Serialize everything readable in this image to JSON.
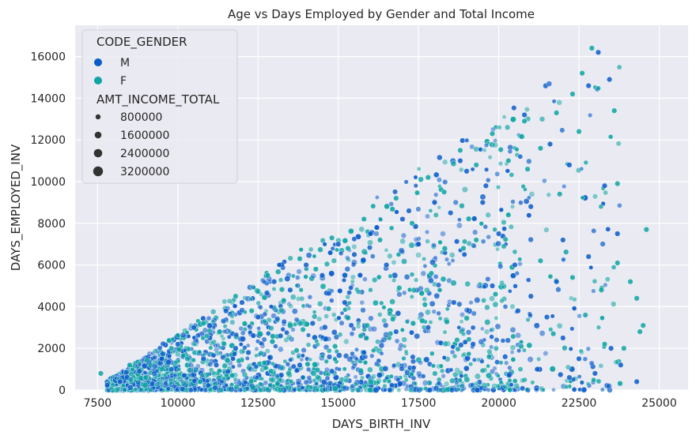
{
  "chart_data": {
    "type": "scatter",
    "title": "Age vs Days Employed by Gender and Total Income",
    "xlabel": "DAYS_BIRTH_INV",
    "ylabel": "DAYS_EMPLOYED_INV",
    "xlim": [
      6800,
      25900
    ],
    "ylim": [
      0,
      17500
    ],
    "xticks": [
      7500,
      10000,
      12500,
      15000,
      17500,
      20000,
      22500,
      25000
    ],
    "yticks": [
      0,
      2000,
      4000,
      6000,
      8000,
      10000,
      12000,
      14000,
      16000
    ],
    "grid": true,
    "legend": {
      "placement": "top-left",
      "hue_title": "CODE_GENDER",
      "size_title": "AMT_INCOME_TOTAL",
      "hue_entries": [
        {
          "label": "M",
          "color": "#0a5cc9"
        },
        {
          "label": "F",
          "color": "#0fa3a3"
        }
      ],
      "size_entries": [
        {
          "label": "800000",
          "value": 800000
        },
        {
          "label": "1600000",
          "value": 1600000
        },
        {
          "label": "2400000",
          "value": 2400000
        },
        {
          "label": "3200000",
          "value": 3200000
        }
      ]
    },
    "series": [
      {
        "name": "M",
        "color": "#0a5cc9",
        "points": [
          [
            8200,
            400
          ],
          [
            8800,
            900
          ],
          [
            9500,
            1500
          ],
          [
            10000,
            2200
          ],
          [
            10500,
            3000
          ],
          [
            11000,
            2500
          ],
          [
            11500,
            3800
          ],
          [
            12000,
            4200
          ],
          [
            12500,
            3500
          ],
          [
            13000,
            5200
          ],
          [
            13500,
            4800
          ],
          [
            14000,
            6000
          ],
          [
            14500,
            5500
          ],
          [
            15000,
            7000
          ],
          [
            15500,
            6500
          ],
          [
            16000,
            7500
          ],
          [
            16500,
            6000
          ],
          [
            17000,
            8200
          ],
          [
            17500,
            7000
          ],
          [
            18000,
            9000
          ],
          [
            18500,
            8500
          ],
          [
            19000,
            10500
          ],
          [
            19500,
            9000
          ],
          [
            20000,
            7500
          ],
          [
            20500,
            6000
          ],
          [
            21000,
            4500
          ],
          [
            21500,
            3500
          ],
          [
            22000,
            2500
          ],
          [
            22500,
            1500
          ],
          [
            23000,
            800
          ],
          [
            23500,
            2000
          ],
          [
            22800,
            14600
          ],
          [
            23100,
            16200
          ],
          [
            23450,
            14900
          ],
          [
            20800,
            13200
          ],
          [
            21600,
            11800
          ],
          [
            22200,
            10800
          ],
          [
            19600,
            9800
          ],
          [
            18800,
            11000
          ],
          [
            17200,
            8600
          ],
          [
            16200,
            7800
          ],
          [
            15200,
            4200
          ],
          [
            14200,
            3200
          ],
          [
            13200,
            2600
          ],
          [
            12200,
            1800
          ],
          [
            11200,
            1200
          ],
          [
            10200,
            700
          ],
          [
            9200,
            300
          ],
          [
            17800,
            3000
          ],
          [
            19200,
            2200
          ],
          [
            20200,
            1600
          ],
          [
            21200,
            1000
          ],
          [
            22200,
            600
          ],
          [
            23800,
            1200
          ],
          [
            24300,
            400
          ],
          [
            23700,
            7500
          ],
          [
            23300,
            9800
          ],
          [
            22800,
            6400
          ],
          [
            21800,
            5200
          ],
          [
            20600,
            3800
          ],
          [
            19800,
            5000
          ],
          [
            18600,
            4200
          ],
          [
            16800,
            2800
          ],
          [
            15800,
            1800
          ],
          [
            14800,
            900
          ],
          [
            13800,
            1200
          ],
          [
            12800,
            800
          ],
          [
            11800,
            2000
          ],
          [
            10800,
            1500
          ],
          [
            9800,
            1000
          ],
          [
            21000,
            8800
          ],
          [
            22000,
            7200
          ]
        ]
      },
      {
        "name": "F",
        "color": "#0fa3a3",
        "points": [
          [
            7600,
            800
          ],
          [
            8500,
            1200
          ],
          [
            9000,
            600
          ],
          [
            9800,
            2000
          ],
          [
            10300,
            1500
          ],
          [
            10800,
            3200
          ],
          [
            11300,
            2800
          ],
          [
            11800,
            4500
          ],
          [
            12300,
            3800
          ],
          [
            12800,
            5500
          ],
          [
            13300,
            4300
          ],
          [
            13800,
            6300
          ],
          [
            14300,
            5800
          ],
          [
            14800,
            7300
          ],
          [
            15300,
            6800
          ],
          [
            15800,
            8200
          ],
          [
            16300,
            7200
          ],
          [
            16800,
            9200
          ],
          [
            17300,
            8000
          ],
          [
            17800,
            10200
          ],
          [
            18300,
            9500
          ],
          [
            18800,
            11500
          ],
          [
            19300,
            10800
          ],
          [
            19800,
            12300
          ],
          [
            20300,
            11000
          ],
          [
            20800,
            12900
          ],
          [
            21300,
            11600
          ],
          [
            21800,
            13300
          ],
          [
            22300,
            14200
          ],
          [
            22600,
            15200
          ],
          [
            22900,
            16400
          ],
          [
            23600,
            13400
          ],
          [
            24600,
            7700
          ],
          [
            24300,
            4400
          ],
          [
            24100,
            5200
          ],
          [
            23700,
            6100
          ],
          [
            24500,
            3100
          ],
          [
            23200,
            4800
          ],
          [
            22700,
            3600
          ],
          [
            21700,
            2700
          ],
          [
            20700,
            2100
          ],
          [
            19700,
            1600
          ],
          [
            18700,
            2400
          ],
          [
            17700,
            4100
          ],
          [
            16700,
            3400
          ],
          [
            15700,
            2600
          ],
          [
            14700,
            3900
          ],
          [
            13700,
            1900
          ],
          [
            12700,
            1300
          ],
          [
            11700,
            700
          ],
          [
            10700,
            400
          ],
          [
            21300,
            6200
          ],
          [
            20300,
            8400
          ],
          [
            19300,
            7200
          ],
          [
            22300,
            5400
          ],
          [
            23300,
            2200
          ],
          [
            23900,
            2000
          ],
          [
            24400,
            2800
          ],
          [
            21900,
            9400
          ],
          [
            22500,
            12400
          ],
          [
            23700,
            9900
          ],
          [
            20900,
            10600
          ],
          [
            19900,
            4600
          ],
          [
            18900,
            6800
          ],
          [
            17900,
            5600
          ],
          [
            16900,
            4900
          ],
          [
            15900,
            3100
          ],
          [
            14900,
            2100
          ],
          [
            13900,
            2900
          ],
          [
            12900,
            900
          ],
          [
            11900,
            1400
          ],
          [
            10900,
            2600
          ]
        ]
      }
    ]
  }
}
